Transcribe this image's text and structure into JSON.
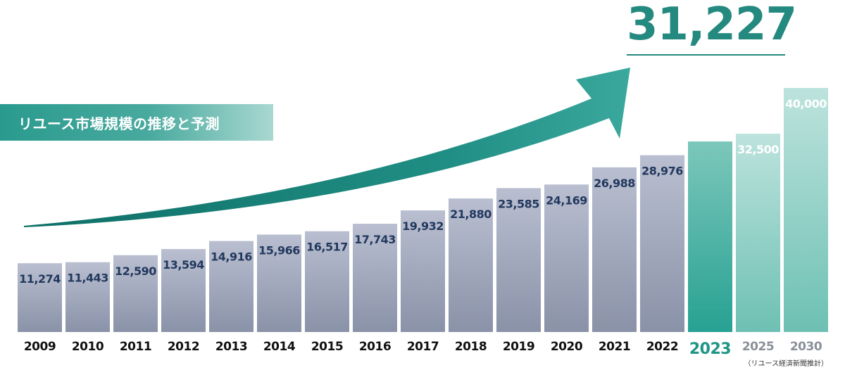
{
  "header": {
    "title": "リユース市場規模の推移と予測",
    "headline_value": "31,227",
    "source_note": "（リユース経済新聞推計）"
  },
  "colors": {
    "gray_bar_top": "#b9bfd0",
    "gray_bar_bottom": "#8a92a8",
    "teal_bar": "#2fa596",
    "teal_forecast": "#8fd0c5",
    "label_navy": "#23385e",
    "headline_teal": "#24897f",
    "arrow_teal": "#1d8c82"
  },
  "chart_data": {
    "type": "bar",
    "title": "リユース市場規模の推移と予測",
    "categories": [
      "2009",
      "2010",
      "2011",
      "2012",
      "2013",
      "2014",
      "2015",
      "2016",
      "2017",
      "2018",
      "2019",
      "2020",
      "2021",
      "2022",
      "2023",
      "2025",
      "2030"
    ],
    "values": [
      11274,
      11443,
      12590,
      13594,
      14916,
      15966,
      16517,
      17743,
      19932,
      21880,
      23585,
      24169,
      26988,
      28976,
      31227,
      32500,
      40000
    ],
    "value_labels": [
      "11,274",
      "11,443",
      "12,590",
      "13,594",
      "14,916",
      "15,966",
      "16,517",
      "17,743",
      "19,932",
      "21,880",
      "23,585",
      "24,169",
      "26,988",
      "28,976",
      "",
      "32,500",
      "40,000"
    ],
    "highlight": "2023",
    "highlight_value_label": "31,227",
    "forecast": [
      "2025",
      "2030"
    ],
    "annotations": [
      "31,227"
    ],
    "grid": false,
    "legend": "none",
    "xlabel": "",
    "ylabel": ""
  }
}
